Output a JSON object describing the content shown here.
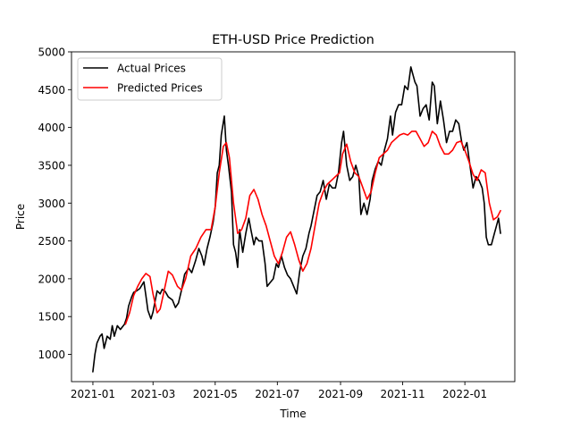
{
  "chart_data": {
    "type": "line",
    "title": "ETH-USD Price Prediction",
    "xlabel": "Time",
    "ylabel": "Price",
    "x_ticks": [
      "2021-01",
      "2021-03",
      "2021-05",
      "2021-07",
      "2021-09",
      "2021-11",
      "2022-01"
    ],
    "y_ticks": [
      1000,
      1500,
      2000,
      2500,
      3000,
      3500,
      4000,
      4500,
      5000
    ],
    "xlim": [
      "2020-12-11",
      "2022-02-19"
    ],
    "ylim": [
      640,
      5000
    ],
    "legend_position": "top-left",
    "colors": {
      "actual": "#000000",
      "predicted": "#ff0000"
    },
    "series": [
      {
        "name": "Actual Prices",
        "color": "#000000",
        "points": [
          [
            "2021-01-01",
            770
          ],
          [
            "2021-01-03",
            1000
          ],
          [
            "2021-01-05",
            1150
          ],
          [
            "2021-01-08",
            1240
          ],
          [
            "2021-01-10",
            1270
          ],
          [
            "2021-01-12",
            1080
          ],
          [
            "2021-01-15",
            1240
          ],
          [
            "2021-01-18",
            1200
          ],
          [
            "2021-01-20",
            1380
          ],
          [
            "2021-01-22",
            1240
          ],
          [
            "2021-01-25",
            1380
          ],
          [
            "2021-01-28",
            1330
          ],
          [
            "2021-02-01",
            1400
          ],
          [
            "2021-02-03",
            1480
          ],
          [
            "2021-02-05",
            1640
          ],
          [
            "2021-02-08",
            1760
          ],
          [
            "2021-02-10",
            1820
          ],
          [
            "2021-02-13",
            1840
          ],
          [
            "2021-02-16",
            1870
          ],
          [
            "2021-02-20",
            1960
          ],
          [
            "2021-02-22",
            1780
          ],
          [
            "2021-02-24",
            1580
          ],
          [
            "2021-02-27",
            1470
          ],
          [
            "2021-03-01",
            1560
          ],
          [
            "2021-03-05",
            1840
          ],
          [
            "2021-03-08",
            1800
          ],
          [
            "2021-03-10",
            1860
          ],
          [
            "2021-03-13",
            1830
          ],
          [
            "2021-03-16",
            1760
          ],
          [
            "2021-03-20",
            1720
          ],
          [
            "2021-03-23",
            1620
          ],
          [
            "2021-03-26",
            1680
          ],
          [
            "2021-03-29",
            1850
          ],
          [
            "2021-04-01",
            2060
          ],
          [
            "2021-04-05",
            2140
          ],
          [
            "2021-04-08",
            2080
          ],
          [
            "2021-04-12",
            2250
          ],
          [
            "2021-04-15",
            2400
          ],
          [
            "2021-04-18",
            2300
          ],
          [
            "2021-04-20",
            2180
          ],
          [
            "2021-04-23",
            2400
          ],
          [
            "2021-04-26",
            2560
          ],
          [
            "2021-04-29",
            2750
          ],
          [
            "2021-05-01",
            2950
          ],
          [
            "2021-05-03",
            3400
          ],
          [
            "2021-05-05",
            3500
          ],
          [
            "2021-05-07",
            3900
          ],
          [
            "2021-05-10",
            4150
          ],
          [
            "2021-05-12",
            3700
          ],
          [
            "2021-05-14",
            3500
          ],
          [
            "2021-05-17",
            3150
          ],
          [
            "2021-05-19",
            2450
          ],
          [
            "2021-05-21",
            2350
          ],
          [
            "2021-05-23",
            2150
          ],
          [
            "2021-05-25",
            2650
          ],
          [
            "2021-05-28",
            2350
          ],
          [
            "2021-05-31",
            2600
          ],
          [
            "2021-06-03",
            2800
          ],
          [
            "2021-06-05",
            2650
          ],
          [
            "2021-06-08",
            2450
          ],
          [
            "2021-06-10",
            2550
          ],
          [
            "2021-06-13",
            2500
          ],
          [
            "2021-06-16",
            2500
          ],
          [
            "2021-06-19",
            2200
          ],
          [
            "2021-06-21",
            1900
          ],
          [
            "2021-06-24",
            1950
          ],
          [
            "2021-06-27",
            2000
          ],
          [
            "2021-06-30",
            2200
          ],
          [
            "2021-07-02",
            2150
          ],
          [
            "2021-07-05",
            2300
          ],
          [
            "2021-07-08",
            2150
          ],
          [
            "2021-07-11",
            2050
          ],
          [
            "2021-07-14",
            2000
          ],
          [
            "2021-07-17",
            1900
          ],
          [
            "2021-07-20",
            1800
          ],
          [
            "2021-07-23",
            2100
          ],
          [
            "2021-07-26",
            2300
          ],
          [
            "2021-07-29",
            2400
          ],
          [
            "2021-08-01",
            2600
          ],
          [
            "2021-08-03",
            2700
          ],
          [
            "2021-08-06",
            2900
          ],
          [
            "2021-08-09",
            3100
          ],
          [
            "2021-08-12",
            3150
          ],
          [
            "2021-08-15",
            3300
          ],
          [
            "2021-08-18",
            3050
          ],
          [
            "2021-08-21",
            3250
          ],
          [
            "2021-08-24",
            3200
          ],
          [
            "2021-08-27",
            3200
          ],
          [
            "2021-08-30",
            3400
          ],
          [
            "2021-09-02",
            3800
          ],
          [
            "2021-09-04",
            3950
          ],
          [
            "2021-09-07",
            3500
          ],
          [
            "2021-09-10",
            3300
          ],
          [
            "2021-09-13",
            3350
          ],
          [
            "2021-09-16",
            3500
          ],
          [
            "2021-09-19",
            3350
          ],
          [
            "2021-09-21",
            2850
          ],
          [
            "2021-09-24",
            3000
          ],
          [
            "2021-09-27",
            2850
          ],
          [
            "2021-09-30",
            3050
          ],
          [
            "2021-10-02",
            3300
          ],
          [
            "2021-10-05",
            3450
          ],
          [
            "2021-10-08",
            3550
          ],
          [
            "2021-10-11",
            3500
          ],
          [
            "2021-10-14",
            3700
          ],
          [
            "2021-10-17",
            3850
          ],
          [
            "2021-10-20",
            4150
          ],
          [
            "2021-10-22",
            3900
          ],
          [
            "2021-10-25",
            4200
          ],
          [
            "2021-10-28",
            4300
          ],
          [
            "2021-10-31",
            4300
          ],
          [
            "2021-11-03",
            4550
          ],
          [
            "2021-11-06",
            4500
          ],
          [
            "2021-11-09",
            4800
          ],
          [
            "2021-11-11",
            4700
          ],
          [
            "2021-11-13",
            4600
          ],
          [
            "2021-11-15",
            4550
          ],
          [
            "2021-11-18",
            4150
          ],
          [
            "2021-11-21",
            4250
          ],
          [
            "2021-11-24",
            4300
          ],
          [
            "2021-11-27",
            4100
          ],
          [
            "2021-11-30",
            4600
          ],
          [
            "2021-12-02",
            4550
          ],
          [
            "2021-12-05",
            4050
          ],
          [
            "2021-12-08",
            4350
          ],
          [
            "2021-12-11",
            4100
          ],
          [
            "2021-12-14",
            3800
          ],
          [
            "2021-12-17",
            3950
          ],
          [
            "2021-12-20",
            3950
          ],
          [
            "2021-12-23",
            4100
          ],
          [
            "2021-12-26",
            4050
          ],
          [
            "2021-12-29",
            3800
          ],
          [
            "2021-12-31",
            3700
          ],
          [
            "2022-01-03",
            3800
          ],
          [
            "2022-01-06",
            3500
          ],
          [
            "2022-01-09",
            3200
          ],
          [
            "2022-01-12",
            3350
          ],
          [
            "2022-01-15",
            3300
          ],
          [
            "2022-01-18",
            3200
          ],
          [
            "2022-01-20",
            3000
          ],
          [
            "2022-01-22",
            2550
          ],
          [
            "2022-01-24",
            2450
          ],
          [
            "2022-01-27",
            2450
          ],
          [
            "2022-01-30",
            2600
          ],
          [
            "2022-02-01",
            2700
          ],
          [
            "2022-02-03",
            2800
          ],
          [
            "2022-02-05",
            2600
          ]
        ]
      },
      {
        "name": "Predicted Prices",
        "color": "#ff0000",
        "points": [
          [
            "2021-02-02",
            1400
          ],
          [
            "2021-02-06",
            1550
          ],
          [
            "2021-02-10",
            1780
          ],
          [
            "2021-02-14",
            1900
          ],
          [
            "2021-02-18",
            2000
          ],
          [
            "2021-02-22",
            2070
          ],
          [
            "2021-02-26",
            2030
          ],
          [
            "2021-03-01",
            1800
          ],
          [
            "2021-03-05",
            1550
          ],
          [
            "2021-03-08",
            1600
          ],
          [
            "2021-03-12",
            1850
          ],
          [
            "2021-03-16",
            2100
          ],
          [
            "2021-03-20",
            2050
          ],
          [
            "2021-03-25",
            1900
          ],
          [
            "2021-03-29",
            1850
          ],
          [
            "2021-04-02",
            2000
          ],
          [
            "2021-04-07",
            2300
          ],
          [
            "2021-04-12",
            2400
          ],
          [
            "2021-04-17",
            2550
          ],
          [
            "2021-04-22",
            2650
          ],
          [
            "2021-04-27",
            2650
          ],
          [
            "2021-05-01",
            2950
          ],
          [
            "2021-05-05",
            3400
          ],
          [
            "2021-05-09",
            3750
          ],
          [
            "2021-05-12",
            3800
          ],
          [
            "2021-05-15",
            3600
          ],
          [
            "2021-05-19",
            3000
          ],
          [
            "2021-05-23",
            2600
          ],
          [
            "2021-05-27",
            2650
          ],
          [
            "2021-05-31",
            2800
          ],
          [
            "2021-06-04",
            3100
          ],
          [
            "2021-06-08",
            3180
          ],
          [
            "2021-06-12",
            3050
          ],
          [
            "2021-06-16",
            2850
          ],
          [
            "2021-06-20",
            2700
          ],
          [
            "2021-06-24",
            2500
          ],
          [
            "2021-06-28",
            2300
          ],
          [
            "2021-07-02",
            2200
          ],
          [
            "2021-07-06",
            2350
          ],
          [
            "2021-07-10",
            2550
          ],
          [
            "2021-07-14",
            2620
          ],
          [
            "2021-07-18",
            2450
          ],
          [
            "2021-07-22",
            2250
          ],
          [
            "2021-07-26",
            2100
          ],
          [
            "2021-07-30",
            2200
          ],
          [
            "2021-08-03",
            2400
          ],
          [
            "2021-08-07",
            2700
          ],
          [
            "2021-08-11",
            3000
          ],
          [
            "2021-08-15",
            3150
          ],
          [
            "2021-08-19",
            3250
          ],
          [
            "2021-08-23",
            3300
          ],
          [
            "2021-08-27",
            3350
          ],
          [
            "2021-08-31",
            3400
          ],
          [
            "2021-09-03",
            3650
          ],
          [
            "2021-09-07",
            3780
          ],
          [
            "2021-09-11",
            3550
          ],
          [
            "2021-09-15",
            3400
          ],
          [
            "2021-09-19",
            3350
          ],
          [
            "2021-09-23",
            3200
          ],
          [
            "2021-09-27",
            3050
          ],
          [
            "2021-10-01",
            3150
          ],
          [
            "2021-10-05",
            3400
          ],
          [
            "2021-10-09",
            3600
          ],
          [
            "2021-10-13",
            3650
          ],
          [
            "2021-10-17",
            3700
          ],
          [
            "2021-10-21",
            3800
          ],
          [
            "2021-10-25",
            3850
          ],
          [
            "2021-10-29",
            3900
          ],
          [
            "2021-11-02",
            3920
          ],
          [
            "2021-11-06",
            3900
          ],
          [
            "2021-11-10",
            3950
          ],
          [
            "2021-11-14",
            3950
          ],
          [
            "2021-11-18",
            3850
          ],
          [
            "2021-11-22",
            3750
          ],
          [
            "2021-11-26",
            3800
          ],
          [
            "2021-11-30",
            3950
          ],
          [
            "2021-12-04",
            3900
          ],
          [
            "2021-12-08",
            3750
          ],
          [
            "2021-12-12",
            3650
          ],
          [
            "2021-12-16",
            3650
          ],
          [
            "2021-12-20",
            3700
          ],
          [
            "2021-12-24",
            3800
          ],
          [
            "2021-12-28",
            3820
          ],
          [
            "2022-01-01",
            3700
          ],
          [
            "2022-01-05",
            3550
          ],
          [
            "2022-01-09",
            3380
          ],
          [
            "2022-01-13",
            3300
          ],
          [
            "2022-01-17",
            3440
          ],
          [
            "2022-01-21",
            3400
          ],
          [
            "2022-01-25",
            3000
          ],
          [
            "2022-01-29",
            2780
          ],
          [
            "2022-02-02",
            2820
          ],
          [
            "2022-02-05",
            2900
          ]
        ]
      }
    ]
  }
}
